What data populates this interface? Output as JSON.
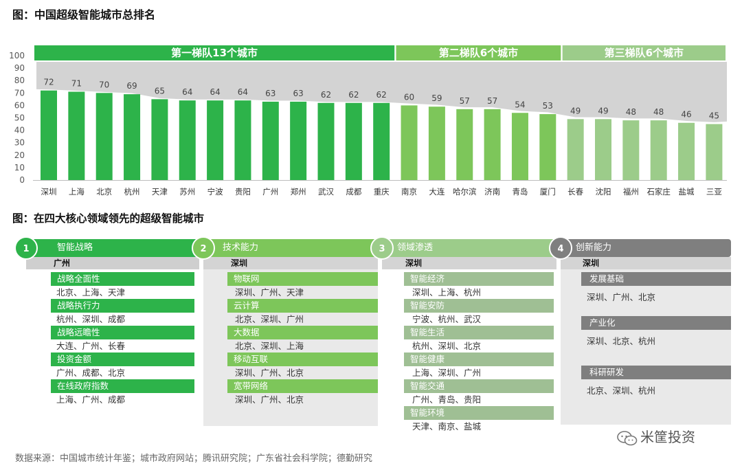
{
  "chart_title": "图：中国超级智能城市总排名",
  "chart_data": {
    "type": "bar",
    "title": "图：中国超级智能城市总排名",
    "categories": [
      "深圳",
      "上海",
      "北京",
      "杭州",
      "天津",
      "苏州",
      "宁波",
      "贵阳",
      "广州",
      "郑州",
      "武汉",
      "成都",
      "重庆",
      "南京",
      "大连",
      "哈尔滨",
      "济南",
      "青岛",
      "厦门",
      "长春",
      "沈阳",
      "福州",
      "石家庄",
      "盐城",
      "三亚"
    ],
    "values": [
      72,
      71,
      70,
      69,
      65,
      64,
      64,
      64,
      63,
      63,
      62,
      62,
      62,
      60,
      59,
      57,
      57,
      54,
      53,
      49,
      49,
      48,
      48,
      46,
      45
    ],
    "tiers": [
      0,
      0,
      0,
      0,
      0,
      0,
      0,
      0,
      0,
      0,
      0,
      0,
      0,
      1,
      1,
      1,
      1,
      1,
      1,
      2,
      2,
      2,
      2,
      2,
      2
    ],
    "yticks": [
      0,
      10,
      20,
      30,
      40,
      50,
      60,
      70,
      80,
      90,
      100
    ],
    "ylim": [
      0,
      100
    ],
    "tier_labels": [
      "第一梯队13个城市",
      "第二梯队6个城市",
      "第三梯队6个城市"
    ],
    "tier_colors": [
      "#2db34a",
      "#7dc65a",
      "#9ccc8a"
    ]
  },
  "section2": {
    "title": "图：在四大核心领域领先的超级智能城市",
    "columns": [
      {
        "num": "1",
        "title": "智能战略",
        "leader": "广州",
        "color": "#2db34a",
        "item_color": "#2db34a",
        "leader_bg": "#cfcfcf",
        "items": [
          {
            "label": "战略全面性",
            "cities": "北京、上海、天津"
          },
          {
            "label": "战略执行力",
            "cities": "杭州、深圳、成都"
          },
          {
            "label": "战略远瞻性",
            "cities": "大连、广州、长春"
          },
          {
            "label": "投资金额",
            "cities": "广州、成都、北京"
          },
          {
            "label": "在线政府指数",
            "cities": "上海、广州、成都"
          }
        ]
      },
      {
        "num": "2",
        "title": "技术能力",
        "leader": "深圳",
        "color": "#7dc65a",
        "item_color": "#7dc65a",
        "leader_bg": "#d4d4d4",
        "items": [
          {
            "label": "物联网",
            "cities": "深圳、广州、天津"
          },
          {
            "label": "云计算",
            "cities": "北京、深圳、广州"
          },
          {
            "label": "大数据",
            "cities": "北京、深圳、上海"
          },
          {
            "label": "移动互联",
            "cities": "深圳、广州、北京"
          },
          {
            "label": "宽带网络",
            "cities": "深圳、广州、北京"
          }
        ]
      },
      {
        "num": "3",
        "title": "领域渗透",
        "leader": "深圳",
        "color": "#9ccc8a",
        "item_color": "#9fbf94",
        "leader_bg": "#d4d4d4",
        "items": [
          {
            "label": "智能经济",
            "cities": "深圳、上海、杭州"
          },
          {
            "label": "智能安防",
            "cities": "宁波、杭州、武汉"
          },
          {
            "label": "智能生活",
            "cities": "杭州、深圳、北京"
          },
          {
            "label": "智能健康",
            "cities": "上海、深圳、广州"
          },
          {
            "label": "智能交通",
            "cities": "广州、青岛、贵阳"
          },
          {
            "label": "智能环境",
            "cities": "天津、南京、盐城"
          }
        ]
      },
      {
        "num": "4",
        "title": "创新能力",
        "leader": "深圳",
        "color": "#7f7f7f",
        "item_color": "#7f7f7f",
        "leader_bg": "#d4d4d4",
        "items": [
          {
            "label": "发展基础",
            "cities": "深圳、广州、北京"
          },
          {
            "label": "产业化",
            "cities": "深圳、北京、杭州"
          },
          {
            "label": "科研研发",
            "cities": "北京、深圳、杭州"
          }
        ]
      }
    ]
  },
  "source": "数据来源：中国城市统计年鉴；城市政府网站；腾讯研究院；广东省社会科学院；德勤研究",
  "watermark": "米筐投资"
}
